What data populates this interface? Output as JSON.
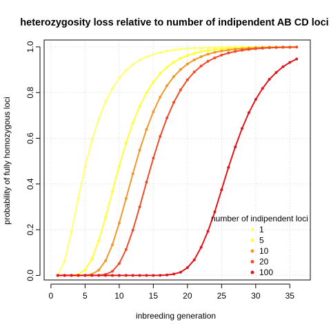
{
  "chart_data": {
    "type": "line",
    "title": "heterozygosity loss relative to number of indipendent AB CD loci",
    "xlabel": "inbreeding generation",
    "ylabel": "probability of fully homozygous loci",
    "xlim": [
      -1,
      38
    ],
    "ylim": [
      -0.02,
      1.03
    ],
    "xticks": [
      0,
      5,
      10,
      15,
      20,
      25,
      30,
      35
    ],
    "yticks": [
      0.0,
      0.2,
      0.4,
      0.6,
      0.8,
      1.0
    ],
    "ytick_labels": [
      "0.0",
      "0.2",
      "0.4",
      "0.6",
      "0.8",
      "1.0"
    ],
    "grid": true,
    "legend": {
      "title": "number of indipendent loci",
      "placement": "bottom-right"
    },
    "x": [
      1,
      2,
      3,
      4,
      5,
      6,
      7,
      8,
      9,
      10,
      11,
      12,
      13,
      14,
      15,
      16,
      17,
      18,
      19,
      20,
      21,
      22,
      23,
      24,
      25,
      26,
      27,
      28,
      29,
      30,
      31,
      32,
      33,
      34,
      35,
      36
    ],
    "series": [
      {
        "name": "1",
        "color": "#FFFF70",
        "values": [
          0.0,
          0.0625,
          0.191,
          0.337,
          0.474,
          0.59,
          0.685,
          0.76,
          0.818,
          0.863,
          0.897,
          0.922,
          0.942,
          0.956,
          0.967,
          0.975,
          0.982,
          0.986,
          0.99,
          0.992,
          0.994,
          0.995,
          0.996,
          0.997,
          0.998,
          0.998,
          0.999,
          0.999,
          0.999,
          0.999,
          0.999,
          1.0,
          1.0,
          1.0,
          1.0,
          1.0
        ]
      },
      {
        "name": "5",
        "color": "#FFFF33",
        "values": [
          0.0,
          0.0,
          0.0003,
          0.0043,
          0.024,
          0.072,
          0.152,
          0.253,
          0.367,
          0.479,
          0.58,
          0.667,
          0.74,
          0.799,
          0.846,
          0.883,
          0.911,
          0.933,
          0.95,
          0.962,
          0.972,
          0.979,
          0.984,
          0.988,
          0.991,
          0.993,
          0.995,
          0.996,
          0.997,
          0.998,
          0.998,
          0.999,
          0.999,
          0.999,
          0.999,
          0.999
        ]
      },
      {
        "name": "10",
        "color": "#F29628",
        "values": [
          0.0,
          0.0,
          0.0,
          0.0,
          0.0006,
          0.005,
          0.023,
          0.064,
          0.134,
          0.229,
          0.336,
          0.445,
          0.548,
          0.639,
          0.716,
          0.78,
          0.83,
          0.87,
          0.901,
          0.925,
          0.943,
          0.957,
          0.968,
          0.976,
          0.982,
          0.986,
          0.99,
          0.992,
          0.994,
          0.996,
          0.997,
          0.998,
          0.998,
          0.999,
          0.999,
          0.999
        ]
      },
      {
        "name": "20",
        "color": "#EE4A28",
        "values": [
          0.0,
          0.0,
          0.0,
          0.0,
          0.0,
          0.0,
          0.0005,
          0.004,
          0.018,
          0.052,
          0.113,
          0.198,
          0.3,
          0.408,
          0.513,
          0.608,
          0.689,
          0.757,
          0.812,
          0.856,
          0.89,
          0.916,
          0.937,
          0.952,
          0.964,
          0.973,
          0.98,
          0.985,
          0.989,
          0.992,
          0.994,
          0.996,
          0.997,
          0.998,
          0.998,
          0.999
        ]
      },
      {
        "name": "100",
        "color": "#E0141A",
        "values": [
          0.0,
          0.0,
          0.0,
          0.0,
          0.0,
          0.0,
          0.0,
          0.0,
          0.0,
          0.0,
          0.0,
          0.0,
          0.0,
          0.0,
          0.0,
          0.0004,
          0.002,
          0.006,
          0.014,
          0.034,
          0.068,
          0.123,
          0.193,
          0.278,
          0.375,
          0.472,
          0.562,
          0.643,
          0.712,
          0.77,
          0.818,
          0.858,
          0.888,
          0.913,
          0.932,
          0.947
        ]
      }
    ]
  }
}
